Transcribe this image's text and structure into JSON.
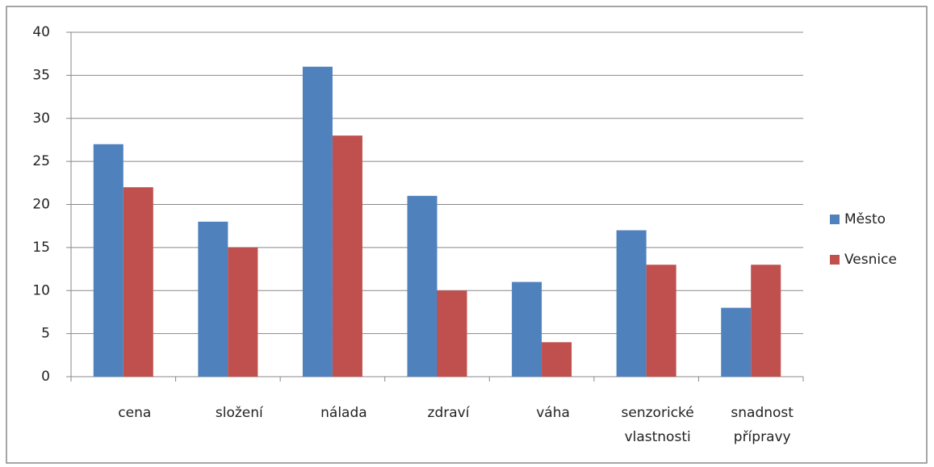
{
  "chart_data": {
    "type": "bar",
    "categories": [
      "cena",
      "složení",
      "nálada",
      "zdraví",
      "váha",
      "senzorické vlastnosti",
      "snadnost přípravy"
    ],
    "series": [
      {
        "name": "Město",
        "color": "#4f81bd",
        "values": [
          27,
          18,
          36,
          21,
          11,
          17,
          8
        ]
      },
      {
        "name": "Vesnice",
        "color": "#c0504d",
        "values": [
          22,
          15,
          28,
          10,
          4,
          13,
          13
        ]
      }
    ],
    "ylim": [
      0,
      40
    ],
    "yticks": [
      0,
      5,
      10,
      15,
      20,
      25,
      30,
      35,
      40
    ],
    "grid": true,
    "legend": "right"
  }
}
